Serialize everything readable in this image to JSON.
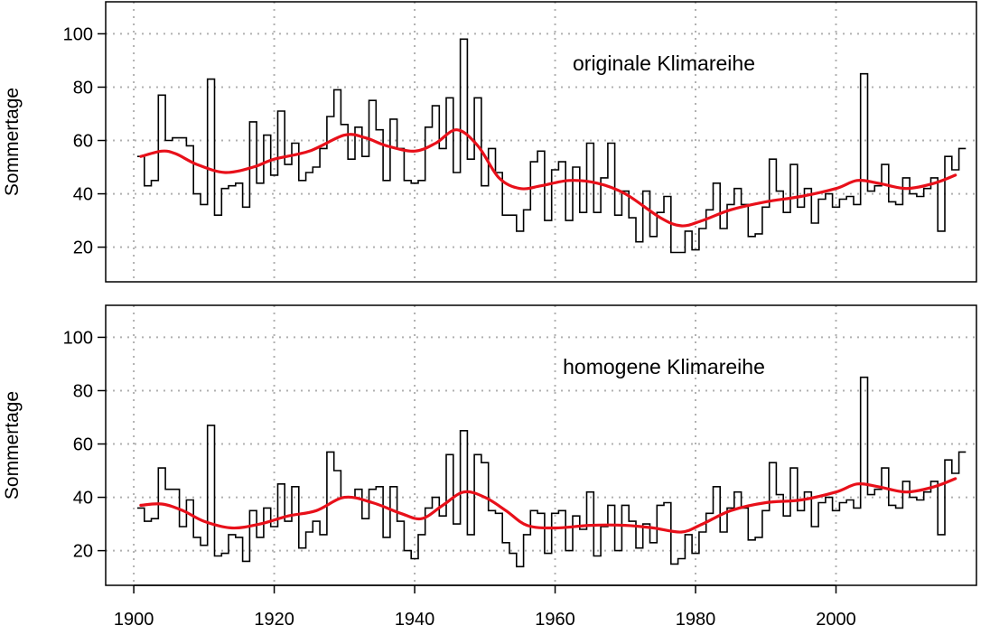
{
  "chart_data": [
    {
      "type": "line",
      "title": "originale Klimareihe",
      "xlabel": "",
      "ylabel": "Sommertage",
      "xlim": [
        1896,
        2020
      ],
      "ylim": [
        7,
        112
      ],
      "xticks": [
        1900,
        1920,
        1940,
        1960,
        1980,
        2000
      ],
      "yticks": [
        20,
        40,
        60,
        80,
        100
      ],
      "grid": true,
      "series": [
        {
          "style": "step",
          "color": "#000000",
          "x_start": 1901,
          "values": [
            54,
            43,
            45,
            77,
            60,
            61,
            61,
            58,
            40,
            36,
            83,
            32,
            42,
            43,
            44,
            35,
            67,
            44,
            62,
            47,
            71,
            51,
            59,
            45,
            48,
            50,
            57,
            69,
            79,
            66,
            53,
            65,
            54,
            75,
            64,
            45,
            68,
            57,
            45,
            44,
            45,
            65,
            73,
            57,
            76,
            48,
            98,
            53,
            76,
            43,
            57,
            48,
            32,
            32,
            26,
            34,
            52,
            56,
            30,
            49,
            52,
            30,
            50,
            33,
            59,
            33,
            46,
            59,
            32,
            41,
            31,
            22,
            41,
            24,
            33,
            39,
            18,
            18,
            26,
            19,
            27,
            34,
            44,
            27,
            36,
            42,
            36,
            24,
            25,
            35,
            53,
            41,
            33,
            51,
            35,
            42,
            29,
            38,
            40,
            35,
            38,
            39,
            36,
            85,
            41,
            43,
            51,
            37,
            36,
            46,
            40,
            39,
            42,
            46,
            26,
            54,
            49,
            57
          ]
        },
        {
          "style": "smooth",
          "color": "#e8101a",
          "x": [
            1901,
            1904,
            1906,
            1909,
            1913,
            1917,
            1920,
            1925,
            1930,
            1933,
            1936,
            1940,
            1943,
            1946,
            1949,
            1952,
            1955,
            1958,
            1962,
            1966,
            1970,
            1975,
            1978,
            1981,
            1985,
            1990,
            1995,
            2000,
            2003,
            2006,
            2010,
            2014,
            2017
          ],
          "values": [
            54,
            56,
            55,
            51,
            48,
            50,
            53,
            56,
            62,
            61,
            58,
            56,
            59,
            64,
            58,
            46,
            42,
            43,
            45,
            44,
            40,
            31,
            28,
            30,
            34,
            37,
            39,
            42,
            45,
            44,
            42,
            44,
            47
          ]
        }
      ]
    },
    {
      "type": "line",
      "title": "homogene Klimareihe",
      "xlabel": "",
      "ylabel": "Sommertage",
      "xlim": [
        1896,
        2020
      ],
      "ylim": [
        7,
        112
      ],
      "xticks": [
        1900,
        1920,
        1940,
        1960,
        1980,
        2000
      ],
      "yticks": [
        20,
        40,
        60,
        80,
        100
      ],
      "grid": true,
      "series": [
        {
          "style": "step",
          "color": "#000000",
          "x_start": 1901,
          "values": [
            36,
            31,
            32,
            51,
            43,
            43,
            29,
            39,
            25,
            22,
            67,
            18,
            19,
            26,
            25,
            16,
            35,
            25,
            36,
            29,
            45,
            31,
            44,
            21,
            27,
            31,
            26,
            57,
            50,
            40,
            40,
            43,
            32,
            43,
            44,
            25,
            44,
            31,
            20,
            17,
            26,
            36,
            40,
            33,
            56,
            30,
            65,
            26,
            56,
            53,
            35,
            34,
            23,
            19,
            14,
            26,
            35,
            34,
            19,
            34,
            35,
            20,
            33,
            28,
            42,
            18,
            29,
            37,
            20,
            37,
            31,
            21,
            30,
            23,
            37,
            38,
            15,
            17,
            26,
            19,
            27,
            34,
            44,
            27,
            36,
            42,
            36,
            24,
            25,
            35,
            53,
            41,
            33,
            51,
            35,
            42,
            29,
            38,
            40,
            35,
            38,
            39,
            36,
            85,
            41,
            43,
            51,
            37,
            36,
            46,
            40,
            39,
            42,
            46,
            26,
            54,
            49,
            57
          ]
        },
        {
          "style": "smooth",
          "color": "#e8101a",
          "x": [
            1901,
            1904,
            1907,
            1910,
            1914,
            1918,
            1922,
            1926,
            1930,
            1934,
            1938,
            1941,
            1944,
            1947,
            1950,
            1953,
            1956,
            1960,
            1965,
            1970,
            1974,
            1978,
            1981,
            1985,
            1990,
            1995,
            2000,
            2003,
            2006,
            2010,
            2014,
            2017
          ],
          "values": [
            37,
            37.5,
            35,
            31,
            28.5,
            30,
            33,
            35,
            40,
            38,
            34,
            32,
            37,
            42,
            40,
            35,
            29.5,
            28.5,
            29.5,
            29.5,
            28.5,
            27,
            30,
            35,
            38,
            39,
            42,
            45,
            44,
            42,
            44,
            47
          ]
        }
      ]
    }
  ]
}
